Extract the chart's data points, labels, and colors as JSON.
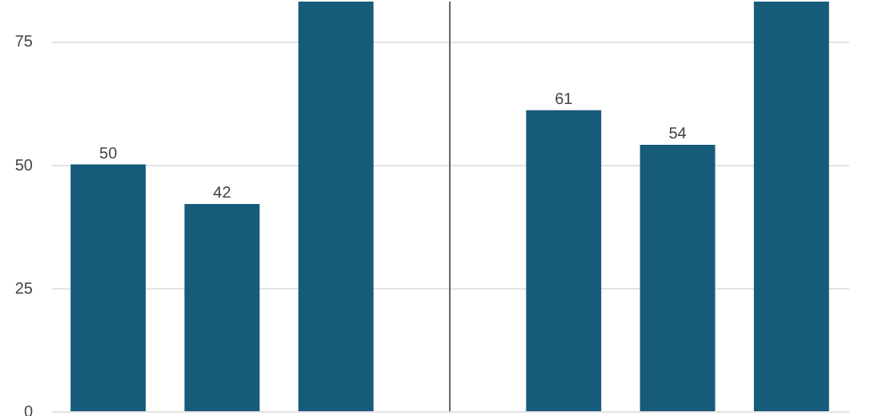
{
  "chart_data": {
    "type": "bar",
    "categories": [
      null,
      null,
      null,
      null,
      null,
      null,
      null
    ],
    "values": [
      50,
      42,
      83,
      null,
      61,
      54,
      83
    ],
    "value_labels": [
      "50",
      "42",
      null,
      null,
      "61",
      "54",
      null
    ],
    "color": "#175b7a",
    "ylim": [
      0,
      83
    ],
    "yticks": [
      0,
      25,
      50,
      75
    ],
    "grid": "y",
    "tick_labels": "y",
    "ref_lines": [
      {
        "axis": "x",
        "value": null,
        "color": "#666666"
      }
    ]
  }
}
